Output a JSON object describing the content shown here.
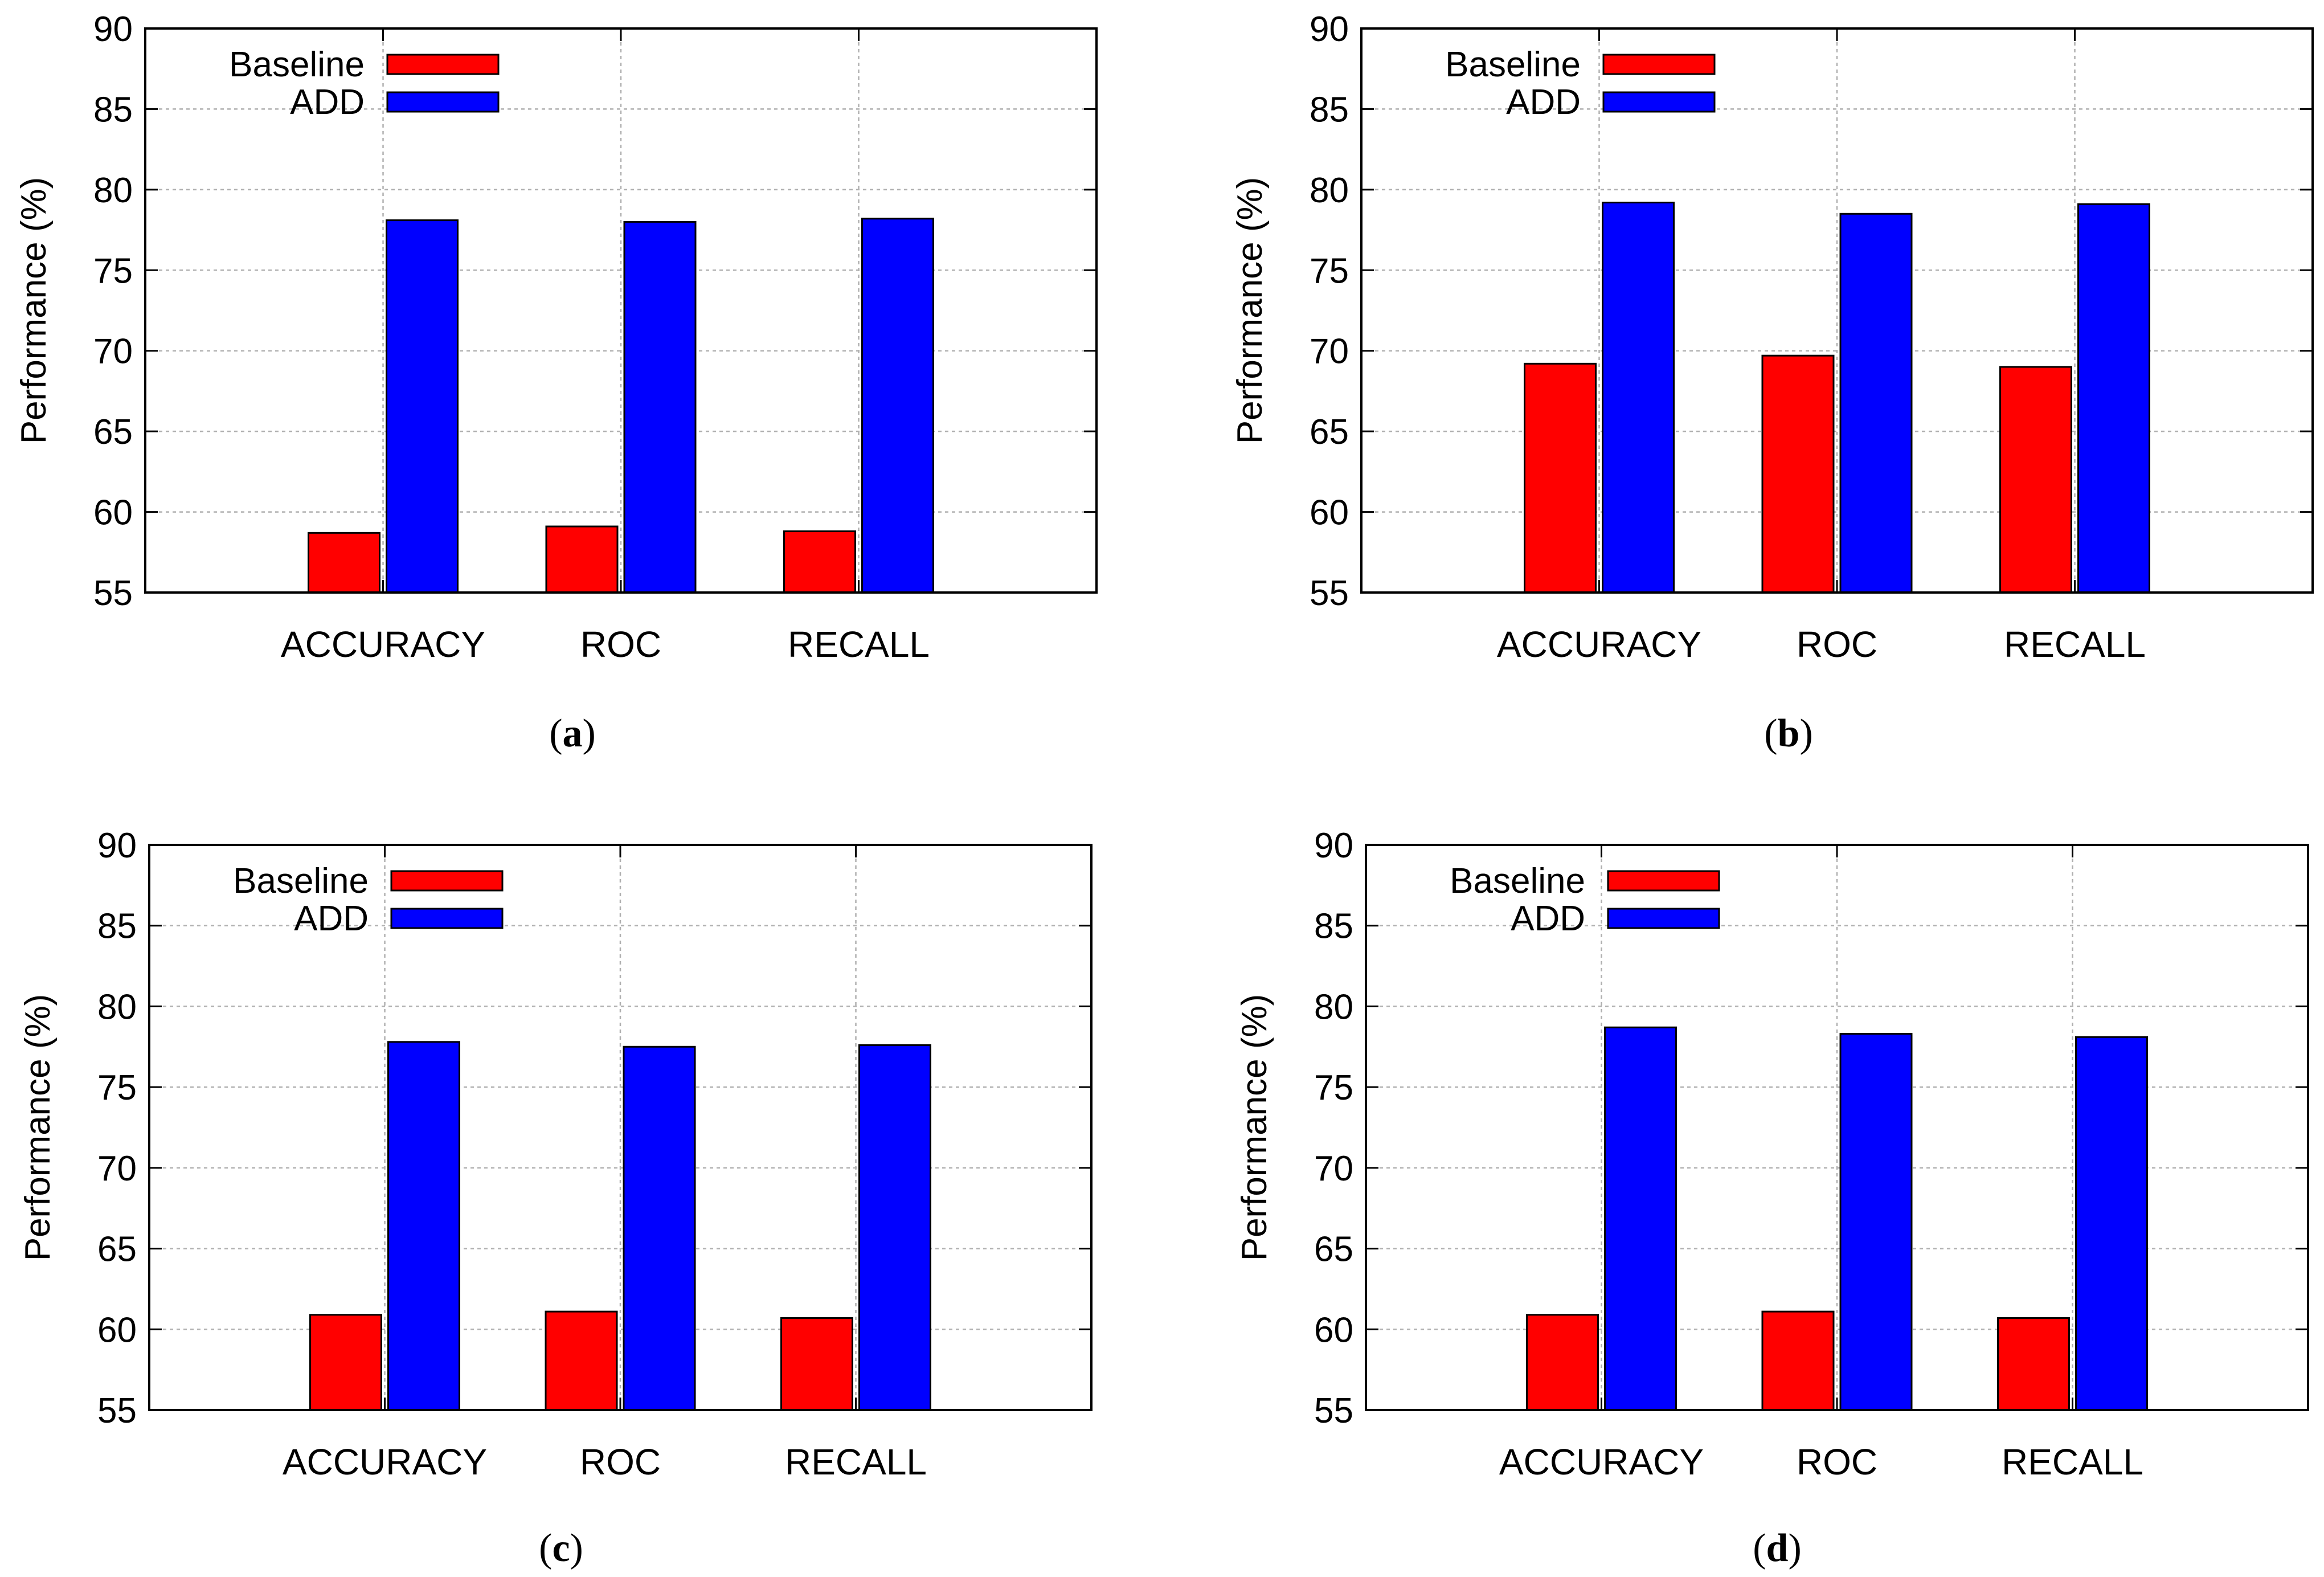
{
  "chart_data": [
    {
      "panel": "a",
      "caption_letter": "a",
      "type": "bar",
      "categories": [
        "ACCURACY",
        "ROC",
        "RECALL"
      ],
      "series": [
        {
          "name": "Baseline",
          "color": "#ff0000",
          "values": [
            58.7,
            59.1,
            58.8
          ]
        },
        {
          "name": "ADD",
          "color": "#0000ff",
          "values": [
            78.1,
            78.0,
            78.2
          ]
        }
      ],
      "ylabel": "Performance (%)",
      "ylim": [
        55,
        90
      ],
      "yticks": [
        55,
        60,
        65,
        70,
        75,
        80,
        85,
        90
      ],
      "grid": true,
      "legend": "top-left"
    },
    {
      "panel": "b",
      "caption_letter": "b",
      "type": "bar",
      "categories": [
        "ACCURACY",
        "ROC",
        "RECALL"
      ],
      "series": [
        {
          "name": "Baseline",
          "color": "#ff0000",
          "values": [
            69.2,
            69.7,
            69.0
          ]
        },
        {
          "name": "ADD",
          "color": "#0000ff",
          "values": [
            79.2,
            78.5,
            79.1
          ]
        }
      ],
      "ylabel": "Performance (%)",
      "ylim": [
        55,
        90
      ],
      "yticks": [
        55,
        60,
        65,
        70,
        75,
        80,
        85,
        90
      ],
      "grid": true,
      "legend": "top-left"
    },
    {
      "panel": "c",
      "caption_letter": "c",
      "type": "bar",
      "categories": [
        "ACCURACY",
        "ROC",
        "RECALL"
      ],
      "series": [
        {
          "name": "Baseline",
          "color": "#ff0000",
          "values": [
            60.9,
            61.1,
            60.7
          ]
        },
        {
          "name": "ADD",
          "color": "#0000ff",
          "values": [
            77.8,
            77.5,
            77.6
          ]
        }
      ],
      "ylabel": "Performance (%)",
      "ylim": [
        55,
        90
      ],
      "yticks": [
        55,
        60,
        65,
        70,
        75,
        80,
        85,
        90
      ],
      "grid": true,
      "legend": "top-left"
    },
    {
      "panel": "d",
      "caption_letter": "d",
      "type": "bar",
      "categories": [
        "ACCURACY",
        "ROC",
        "RECALL"
      ],
      "series": [
        {
          "name": "Baseline",
          "color": "#ff0000",
          "values": [
            60.9,
            61.1,
            60.7
          ]
        },
        {
          "name": "ADD",
          "color": "#0000ff",
          "values": [
            78.7,
            78.3,
            78.1
          ]
        }
      ],
      "ylabel": "Performance (%)",
      "ylim": [
        55,
        90
      ],
      "yticks": [
        55,
        60,
        65,
        70,
        75,
        80,
        85,
        90
      ],
      "grid": true,
      "legend": "top-left"
    }
  ]
}
